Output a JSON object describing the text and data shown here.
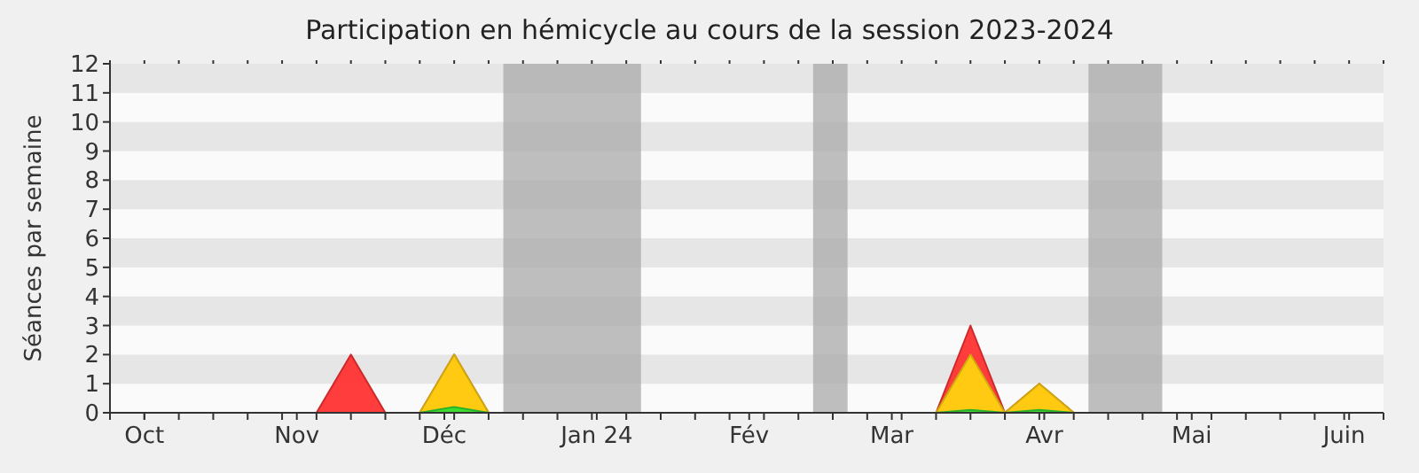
{
  "chart_data": {
    "type": "area",
    "title": "Participation en hémicycle au cours de la session 2023-2024",
    "ylabel": "Séances par semaine",
    "x": [
      "2023-09-24",
      "2023-10-01",
      "2023-10-08",
      "2023-10-15",
      "2023-10-22",
      "2023-10-29",
      "2023-11-05",
      "2023-11-12",
      "2023-11-19",
      "2023-11-26",
      "2023-12-03",
      "2023-12-10",
      "2023-12-17",
      "2023-12-24",
      "2023-12-31",
      "2024-01-07",
      "2024-01-14",
      "2024-01-21",
      "2024-01-28",
      "2024-02-04",
      "2024-02-11",
      "2024-02-18",
      "2024-02-25",
      "2024-03-03",
      "2024-03-10",
      "2024-03-17",
      "2024-03-24",
      "2024-03-31",
      "2024-04-07",
      "2024-04-14",
      "2024-04-21",
      "2024-04-28",
      "2024-05-05",
      "2024-05-12",
      "2024-05-19",
      "2024-05-26",
      "2024-06-02",
      "2024-06-09"
    ],
    "series": [
      {
        "color": "#ff3333",
        "values": [
          0,
          0,
          0,
          0,
          0,
          0,
          0,
          2,
          0,
          0,
          2,
          0,
          0,
          0,
          0,
          0,
          0,
          0,
          0,
          0,
          0,
          0,
          0,
          0,
          0,
          3,
          0,
          1,
          0,
          0,
          0,
          0,
          0,
          0,
          0,
          0,
          0,
          0
        ]
      },
      {
        "color": "#ffd20f",
        "values": [
          0,
          0,
          0,
          0,
          0,
          0,
          0,
          0,
          0,
          0,
          2,
          0,
          0,
          0,
          0,
          0,
          0,
          0,
          0,
          0,
          0,
          0,
          0,
          0,
          0,
          2,
          0,
          1,
          0,
          0,
          0,
          0,
          0,
          0,
          0,
          0,
          0,
          0
        ]
      },
      {
        "color": "#33dd33",
        "values": [
          0,
          0,
          0,
          0,
          0,
          0,
          0,
          0,
          0,
          0,
          0.2,
          0,
          0,
          0,
          0,
          0,
          0,
          0,
          0,
          0,
          0,
          0,
          0,
          0,
          0,
          0.1,
          0,
          0.1,
          0,
          0,
          0,
          0,
          0,
          0,
          0,
          0,
          0,
          0
        ]
      }
    ],
    "xlim": [
      "2023-09-24",
      "2024-06-09"
    ],
    "xticks": [
      {
        "value": "2023-10-01",
        "label": "Oct"
      },
      {
        "value": "2023-11-01",
        "label": "Nov"
      },
      {
        "value": "2023-12-01",
        "label": "Déc"
      },
      {
        "value": "2024-01-01",
        "label": "Jan 24"
      },
      {
        "value": "2024-02-01",
        "label": "Fév"
      },
      {
        "value": "2024-03-01",
        "label": "Mar"
      },
      {
        "value": "2024-04-01",
        "label": "Avr"
      },
      {
        "value": "2024-05-01",
        "label": "Mai"
      },
      {
        "value": "2024-06-01",
        "label": "Juin"
      }
    ],
    "ylim": [
      0,
      12
    ],
    "yticks": [
      0,
      1,
      2,
      3,
      4,
      5,
      6,
      7,
      8,
      9,
      10,
      11,
      12
    ],
    "bands": [
      {
        "axis": "x",
        "from": "2023-12-13",
        "to": "2024-01-10",
        "color": "#aaaaaa"
      },
      {
        "axis": "x",
        "from": "2024-02-14",
        "to": "2024-02-21",
        "color": "#aaaaaa"
      },
      {
        "axis": "x",
        "from": "2024-04-10",
        "to": "2024-04-25",
        "color": "#aaaaaa"
      }
    ]
  }
}
